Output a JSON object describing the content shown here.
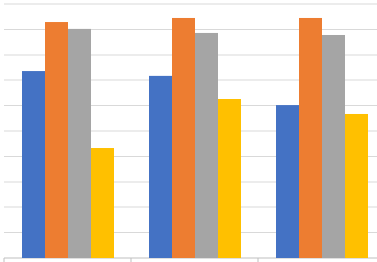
{
  "chart_data": {
    "type": "bar",
    "categories": [
      null,
      null,
      null
    ],
    "series": [
      {
        "color": "#4472c4",
        "values": [
          7.36,
          7.17,
          6.02
        ]
      },
      {
        "color": "#ed7d31",
        "values": [
          9.29,
          9.45,
          9.45
        ]
      },
      {
        "color": "#a5a5a5",
        "values": [
          9.02,
          8.86,
          8.78
        ]
      },
      {
        "color": "#ffc000",
        "values": [
          4.33,
          6.26,
          5.67
        ]
      }
    ],
    "ylim": [
      0,
      10
    ],
    "yticks": [
      0,
      1,
      2,
      3,
      4,
      5,
      6,
      7,
      8,
      9,
      10
    ],
    "grid": true
  }
}
